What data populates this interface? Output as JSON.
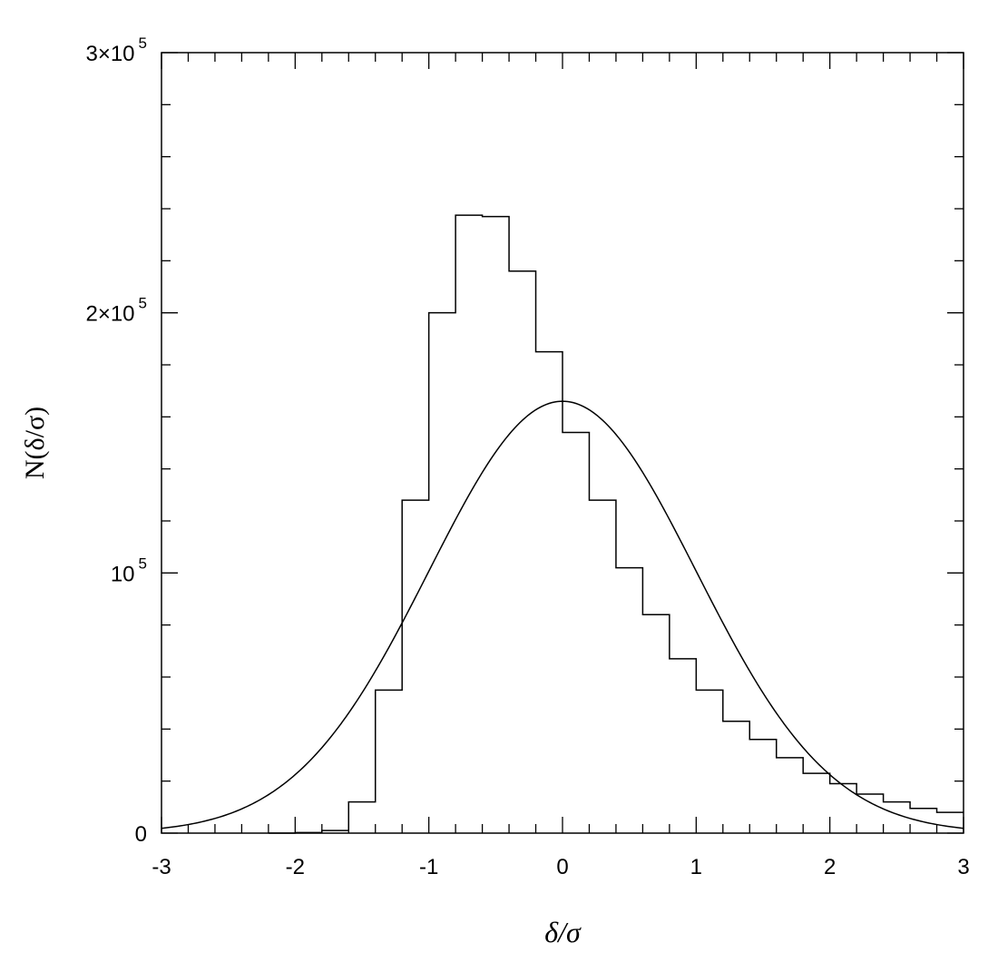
{
  "chart_data": {
    "type": "line",
    "xlabel": "δ/σ",
    "ylabel": "N(δ/σ)",
    "xlim": [
      -3,
      3
    ],
    "ylim": [
      0,
      300000
    ],
    "x_ticks": [
      {
        "value": -3,
        "label": "-3"
      },
      {
        "value": -2,
        "label": "-2"
      },
      {
        "value": -1,
        "label": "-1"
      },
      {
        "value": 0,
        "label": "0"
      },
      {
        "value": 1,
        "label": "1"
      },
      {
        "value": 2,
        "label": "2"
      },
      {
        "value": 3,
        "label": "3"
      }
    ],
    "y_ticks": [
      {
        "value": 0,
        "mantissa": "0",
        "exponent": ""
      },
      {
        "value": 100000,
        "mantissa": "10",
        "exponent": "5"
      },
      {
        "value": 200000,
        "mantissa": "2×10",
        "exponent": "5"
      },
      {
        "value": 300000,
        "mantissa": "3×10",
        "exponent": "5"
      }
    ],
    "grid": false,
    "series": [
      {
        "style": "histogram-step",
        "bin_edges": [
          -2.2,
          -2.0,
          -1.8,
          -1.6,
          -1.4,
          -1.2,
          -1.0,
          -0.8,
          -0.6,
          -0.4,
          -0.2,
          0.0,
          0.2,
          0.4,
          0.6,
          0.8,
          1.0,
          1.2,
          1.4,
          1.6,
          1.8,
          2.0,
          2.2,
          2.4,
          2.6,
          2.8,
          3.0
        ],
        "counts": [
          0,
          200,
          1000,
          12000,
          55000,
          128000,
          200000,
          237500,
          237000,
          216000,
          185000,
          154000,
          128000,
          102000,
          84000,
          67000,
          55000,
          43000,
          36000,
          29000,
          23000,
          19000,
          15000,
          12000,
          9500,
          8000
        ]
      },
      {
        "style": "gaussian-curve",
        "mean": 0,
        "sigma": 1,
        "peak": 166000
      }
    ]
  }
}
